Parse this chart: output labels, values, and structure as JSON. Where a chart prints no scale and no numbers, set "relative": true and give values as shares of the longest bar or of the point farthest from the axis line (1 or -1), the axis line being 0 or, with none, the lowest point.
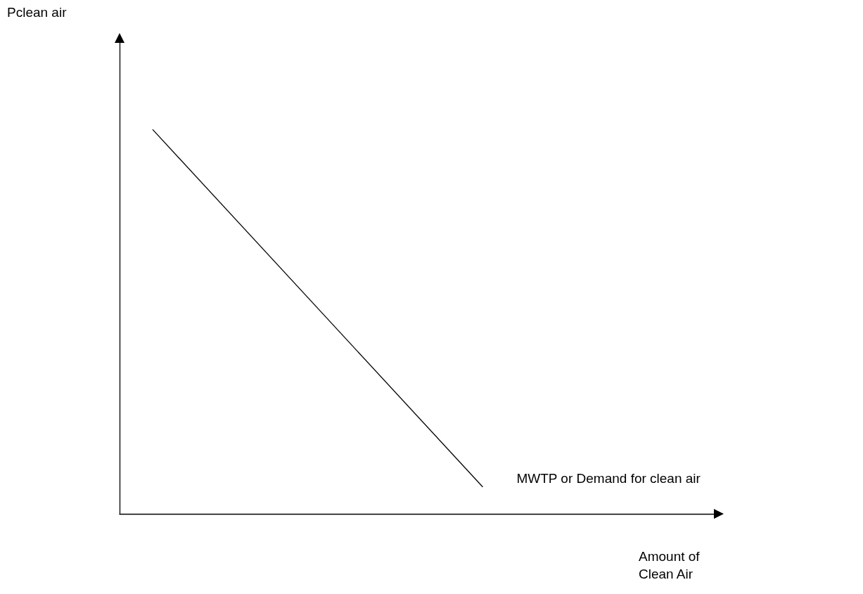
{
  "chart_data": {
    "type": "line",
    "relative": true,
    "xlabel": "Amount of\nClean Air",
    "annotations": [
      "Pclean air"
    ],
    "categories": [
      null,
      null,
      null,
      null,
      null,
      null,
      null,
      null,
      null,
      null,
      null,
      null,
      null,
      null,
      null,
      null,
      null,
      null,
      null
    ],
    "series": [
      {
        "name": "MWTP or Demand for clean air",
        "color": "#000000",
        "values": [
          null,
          1,
          null,
          null,
          null,
          null,
          null,
          null,
          null,
          null,
          null,
          0.07,
          null,
          null,
          null,
          null,
          null,
          null,
          null
        ]
      }
    ],
    "marker": "none",
    "line_style": "solid",
    "grid": false,
    "legend": false
  }
}
